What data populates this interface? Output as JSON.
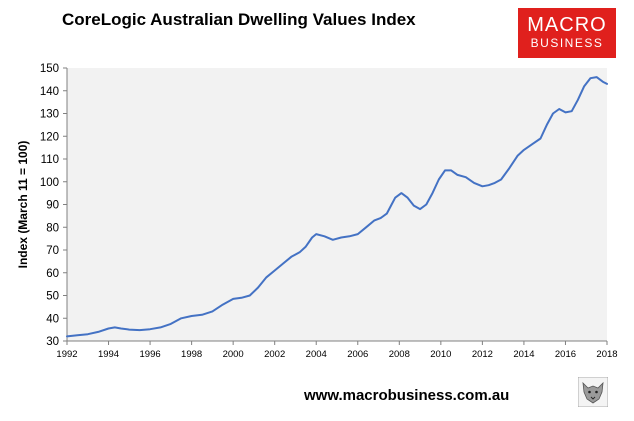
{
  "brand": {
    "top": "MACRO",
    "bottom": "BUSINESS",
    "color": "#e0201d"
  },
  "footer": {
    "url": "www.macrobusiness.com.au"
  },
  "icons": {
    "mascot": "wolf-mascot-icon"
  },
  "chart_data": {
    "type": "line",
    "title": "CoreLogic Australian Dwelling Values Index",
    "xlabel": "",
    "ylabel": "Index (March 11 = 100)",
    "xlim": [
      1992,
      2018
    ],
    "ylim": [
      30,
      150
    ],
    "xticks": [
      1992,
      1994,
      1996,
      1998,
      2000,
      2002,
      2004,
      2006,
      2008,
      2010,
      2012,
      2014,
      2016,
      2018
    ],
    "yticks": [
      30,
      40,
      50,
      60,
      70,
      80,
      90,
      100,
      110,
      120,
      130,
      140,
      150
    ],
    "grid": false,
    "plot_background": "#f2f2f2",
    "series": [
      {
        "name": "",
        "color": "#4472c4",
        "x": [
          1992.0,
          1992.5,
          1993.0,
          1993.5,
          1994.0,
          1994.3,
          1994.6,
          1995.0,
          1995.5,
          1996.0,
          1996.5,
          1997.0,
          1997.5,
          1998.0,
          1998.5,
          1999.0,
          1999.5,
          2000.0,
          2000.4,
          2000.8,
          2001.2,
          2001.6,
          2002.0,
          2002.4,
          2002.8,
          2003.2,
          2003.5,
          2003.8,
          2004.0,
          2004.4,
          2004.8,
          2005.2,
          2005.6,
          2006.0,
          2006.4,
          2006.8,
          2007.1,
          2007.4,
          2007.6,
          2007.8,
          2008.1,
          2008.4,
          2008.7,
          2009.0,
          2009.3,
          2009.6,
          2009.9,
          2010.2,
          2010.5,
          2010.8,
          2011.2,
          2011.6,
          2012.0,
          2012.3,
          2012.6,
          2012.9,
          2013.3,
          2013.7,
          2014.0,
          2014.4,
          2014.8,
          2015.1,
          2015.4,
          2015.7,
          2016.0,
          2016.3,
          2016.6,
          2016.9,
          2017.2,
          2017.5,
          2017.8,
          2018.0
        ],
        "y": [
          32,
          32.5,
          33,
          34,
          35.5,
          36,
          35.5,
          35,
          34.8,
          35.2,
          36,
          37.5,
          40,
          41,
          41.5,
          43,
          46,
          48.5,
          49,
          50,
          53.5,
          58,
          61,
          64,
          67,
          69,
          71.5,
          75.5,
          77,
          76,
          74.5,
          75.5,
          76,
          77,
          80,
          83,
          84,
          86,
          89.5,
          93,
          95,
          93,
          89.5,
          88,
          90,
          95,
          101,
          105,
          105,
          103,
          102,
          99.5,
          98,
          98.5,
          99.5,
          101,
          106,
          111.5,
          114,
          116.5,
          119,
          125,
          130,
          132,
          130.5,
          131,
          136,
          142,
          145.5,
          146,
          144,
          143
        ]
      }
    ]
  }
}
